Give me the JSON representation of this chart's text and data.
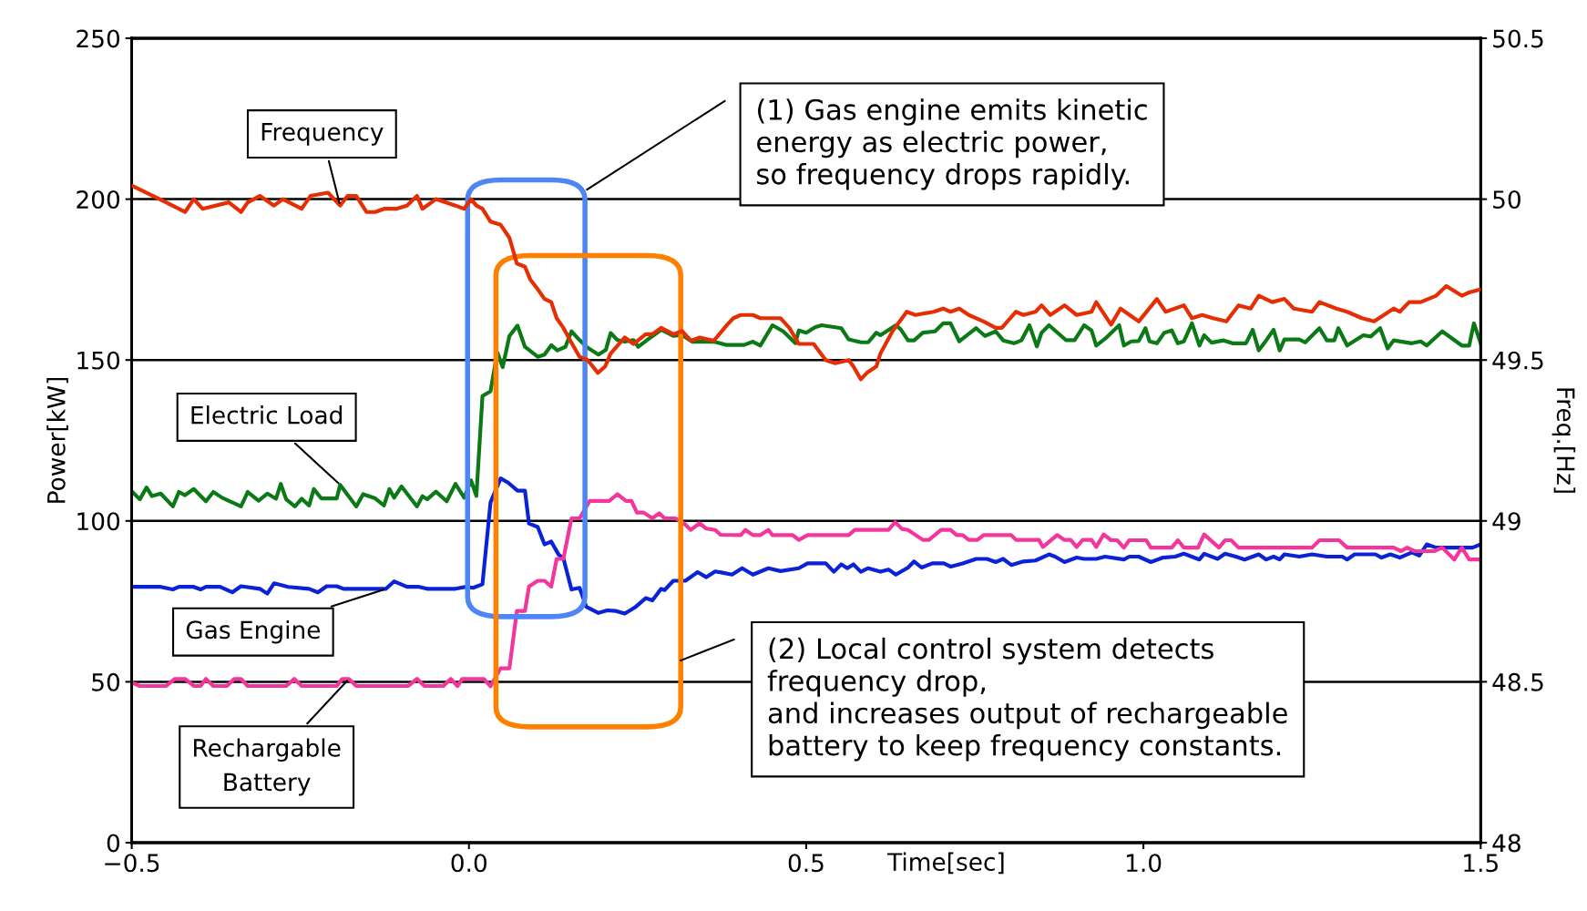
{
  "chart_data": {
    "type": "line",
    "xlabel": "Time[sec]",
    "ylabel": "Power[kW]",
    "y2label": "Freq.[Hz]",
    "xlim": [
      -0.5,
      1.5
    ],
    "xticks": [
      {
        "value": -0.5,
        "label": "−0.5"
      },
      {
        "value": 0,
        "label": "0.0"
      },
      {
        "value": 0.5,
        "label": "0.5"
      },
      {
        "value": 1,
        "label": "1.0"
      },
      {
        "value": 1.5,
        "label": "1.5"
      }
    ],
    "ylim": [
      0,
      250
    ],
    "yticks": [
      0,
      50,
      100,
      150,
      200,
      250
    ],
    "y2lim": [
      48,
      50.5
    ],
    "y2ticks": [
      48,
      48.5,
      49,
      49.5,
      50,
      50.5
    ],
    "grid": "y",
    "legend": false,
    "marker": "none",
    "line_style": "solid",
    "annotations": [
      "(1) Gas engine emits kinetic\nenergy as electric power,\nso frequency drops rapidly.",
      "(2) Local control system detects\nfrequency drop,\nand increases output of rechargeable\nbattery to keep frequency constants."
    ],
    "series": [
      {
        "name": "Frequency",
        "color": "#e62e04",
        "axis": "y2",
        "x": [
          -0.498,
          -0.449,
          -0.421,
          -0.408,
          -0.395,
          -0.356,
          -0.338,
          -0.328,
          -0.31,
          -0.289,
          -0.276,
          -0.248,
          -0.235,
          -0.209,
          -0.191,
          -0.18,
          -0.167,
          -0.152,
          -0.139,
          -0.126,
          -0.108,
          -0.092,
          -0.077,
          -0.069,
          -0.049,
          -0.02,
          -0.007,
          0.003,
          0.011,
          0.02,
          0.032,
          0.047,
          0.06,
          0.071,
          0.083,
          0.091,
          0.102,
          0.112,
          0.122,
          0.13,
          0.14,
          0.153,
          0.164,
          0.176,
          0.191,
          0.202,
          0.21,
          0.231,
          0.244,
          0.262,
          0.272,
          0.285,
          0.303,
          0.316,
          0.329,
          0.342,
          0.363,
          0.383,
          0.392,
          0.403,
          0.421,
          0.432,
          0.462,
          0.475,
          0.489,
          0.511,
          0.529,
          0.543,
          0.563,
          0.57,
          0.581,
          0.59,
          0.604,
          0.61,
          0.628,
          0.649,
          0.662,
          0.689,
          0.703,
          0.714,
          0.727,
          0.741,
          0.763,
          0.781,
          0.79,
          0.811,
          0.822,
          0.84,
          0.849,
          0.862,
          0.883,
          0.901,
          0.923,
          0.93,
          0.952,
          0.966,
          0.993,
          1.02,
          1.033,
          1.06,
          1.072,
          1.087,
          1.103,
          1.123,
          1.141,
          1.159,
          1.171,
          1.191,
          1.209,
          1.223,
          1.25,
          1.261,
          1.286,
          1.302,
          1.324,
          1.342,
          1.371,
          1.38,
          1.394,
          1.411,
          1.434,
          1.449,
          1.472,
          1.483,
          1.5
        ],
        "values": [
          50.04,
          49.99,
          49.96,
          50.0,
          49.97,
          49.99,
          49.96,
          49.99,
          50.01,
          49.98,
          50.0,
          49.97,
          50.01,
          50.02,
          49.98,
          50.01,
          50.01,
          49.96,
          49.96,
          49.97,
          49.97,
          49.98,
          50.01,
          49.97,
          50.0,
          49.98,
          49.97,
          50.0,
          49.98,
          49.97,
          49.93,
          49.92,
          49.88,
          49.8,
          49.79,
          49.75,
          49.72,
          49.69,
          49.68,
          49.63,
          49.6,
          49.55,
          49.51,
          49.5,
          49.46,
          49.48,
          49.52,
          49.57,
          49.55,
          49.58,
          49.58,
          49.6,
          49.58,
          49.59,
          49.56,
          49.57,
          49.56,
          49.61,
          49.63,
          49.64,
          49.64,
          49.63,
          49.63,
          49.6,
          49.55,
          49.55,
          49.5,
          49.49,
          49.5,
          49.48,
          49.44,
          49.46,
          49.48,
          49.52,
          49.59,
          49.65,
          49.64,
          49.65,
          49.66,
          49.65,
          49.66,
          49.64,
          49.62,
          49.6,
          49.6,
          49.65,
          49.64,
          49.65,
          49.67,
          49.64,
          49.67,
          49.64,
          49.65,
          49.68,
          49.61,
          49.66,
          49.62,
          49.69,
          49.65,
          49.67,
          49.63,
          49.64,
          49.63,
          49.62,
          49.67,
          49.66,
          49.7,
          49.68,
          49.69,
          49.66,
          49.65,
          49.68,
          49.66,
          49.65,
          49.63,
          49.62,
          49.66,
          49.65,
          49.68,
          49.68,
          49.7,
          49.73,
          49.7,
          49.71,
          49.72
        ]
      },
      {
        "name": "Electric Load",
        "color": "#0b7a16",
        "x": [
          -0.498,
          -0.488,
          -0.478,
          -0.47,
          -0.457,
          -0.439,
          -0.43,
          -0.421,
          -0.408,
          -0.39,
          -0.379,
          -0.366,
          -0.338,
          -0.328,
          -0.312,
          -0.299,
          -0.286,
          -0.279,
          -0.271,
          -0.258,
          -0.248,
          -0.237,
          -0.23,
          -0.219,
          -0.196,
          -0.191,
          -0.167,
          -0.157,
          -0.139,
          -0.126,
          -0.118,
          -0.111,
          -0.1,
          -0.077,
          -0.069,
          -0.062,
          -0.049,
          -0.033,
          -0.02,
          -0.007,
          0.003,
          0.011,
          0.02,
          0.032,
          0.042,
          0.05,
          0.06,
          0.072,
          0.083,
          0.102,
          0.112,
          0.122,
          0.131,
          0.143,
          0.152,
          0.164,
          0.176,
          0.192,
          0.203,
          0.21,
          0.22,
          0.231,
          0.244,
          0.251,
          0.264,
          0.285,
          0.303,
          0.316,
          0.331,
          0.363,
          0.381,
          0.408,
          0.421,
          0.432,
          0.45,
          0.466,
          0.484,
          0.489,
          0.5,
          0.513,
          0.523,
          0.552,
          0.563,
          0.581,
          0.592,
          0.604,
          0.61,
          0.633,
          0.64,
          0.651,
          0.66,
          0.673,
          0.691,
          0.703,
          0.714,
          0.727,
          0.752,
          0.765,
          0.781,
          0.792,
          0.808,
          0.819,
          0.831,
          0.842,
          0.849,
          0.86,
          0.885,
          0.898,
          0.912,
          0.923,
          0.93,
          0.943,
          0.964,
          0.971,
          0.982,
          0.993,
          1.003,
          1.009,
          1.02,
          1.031,
          1.042,
          1.051,
          1.06,
          1.072,
          1.083,
          1.09,
          1.101,
          1.119,
          1.132,
          1.152,
          1.162,
          1.171,
          1.182,
          1.193,
          1.202,
          1.209,
          1.231,
          1.24,
          1.261,
          1.272,
          1.283,
          1.289,
          1.302,
          1.326,
          1.337,
          1.351,
          1.362,
          1.371,
          1.398,
          1.411,
          1.42,
          1.443,
          1.472,
          1.483,
          1.49,
          1.5
        ],
        "values": [
          108.8,
          106.7,
          110.4,
          107.7,
          108.5,
          104.5,
          109.0,
          108.0,
          109.9,
          106.1,
          109.0,
          107.2,
          104.5,
          109.0,
          106.3,
          108.5,
          106.9,
          111.5,
          106.7,
          104.5,
          106.9,
          104.8,
          109.9,
          107.0,
          107.0,
          111.2,
          104.5,
          108.3,
          107.0,
          104.8,
          109.9,
          107.2,
          110.7,
          104.5,
          107.7,
          106.7,
          109.1,
          106.1,
          111.5,
          107.2,
          112.6,
          107.8,
          138.8,
          140.3,
          152.4,
          147.8,
          157.5,
          160.7,
          154.1,
          151.0,
          151.7,
          154.6,
          153.0,
          154.1,
          158.9,
          156.2,
          153.8,
          151.7,
          153.2,
          158.4,
          156.2,
          155.7,
          156.2,
          154.1,
          156.2,
          159.4,
          157.5,
          157.8,
          155.7,
          155.7,
          154.7,
          154.7,
          155.7,
          154.5,
          160.8,
          158.9,
          155.2,
          159.2,
          158.5,
          160.2,
          160.8,
          159.9,
          156.4,
          155.5,
          155.5,
          158.5,
          157.7,
          160.8,
          159.6,
          156.1,
          156.1,
          158.5,
          158.9,
          161.4,
          161.4,
          155.8,
          159.9,
          157.5,
          158.9,
          156.1,
          155.2,
          156.1,
          160.8,
          154.2,
          158.5,
          160.8,
          156.2,
          156.2,
          160.8,
          159.2,
          154.5,
          156.6,
          160.8,
          154.5,
          155.8,
          155.9,
          159.9,
          155.8,
          155.2,
          158.5,
          159.2,
          155.2,
          155.8,
          161.4,
          154.5,
          157.7,
          155.4,
          156.1,
          155.2,
          155.2,
          159.4,
          153.0,
          156.1,
          159.4,
          153.0,
          156.4,
          156.4,
          155.5,
          159.9,
          156.1,
          156.1,
          159.9,
          154.5,
          157.7,
          157.3,
          159.9,
          153.6,
          156.1,
          155.2,
          155.8,
          154.5,
          158.9,
          154.5,
          154.5,
          161.4,
          155.2
        ]
      },
      {
        "name": "Gas Engine",
        "color": "#0a23d6",
        "x": [
          -0.498,
          -0.457,
          -0.439,
          -0.43,
          -0.408,
          -0.398,
          -0.39,
          -0.369,
          -0.351,
          -0.338,
          -0.31,
          -0.299,
          -0.289,
          -0.268,
          -0.237,
          -0.224,
          -0.211,
          -0.196,
          -0.186,
          -0.123,
          -0.111,
          -0.092,
          -0.074,
          -0.062,
          -0.02,
          -0.005,
          0.006,
          0.02,
          0.032,
          0.047,
          0.058,
          0.072,
          0.083,
          0.089,
          0.102,
          0.112,
          0.122,
          0.133,
          0.14,
          0.152,
          0.164,
          0.174,
          0.192,
          0.205,
          0.218,
          0.231,
          0.246,
          0.262,
          0.272,
          0.285,
          0.29,
          0.303,
          0.321,
          0.339,
          0.352,
          0.365,
          0.376,
          0.39,
          0.405,
          0.421,
          0.444,
          0.462,
          0.489,
          0.502,
          0.529,
          0.541,
          0.552,
          0.561,
          0.57,
          0.581,
          0.592,
          0.61,
          0.622,
          0.633,
          0.651,
          0.66,
          0.671,
          0.687,
          0.704,
          0.714,
          0.732,
          0.752,
          0.768,
          0.781,
          0.792,
          0.804,
          0.822,
          0.84,
          0.86,
          0.869,
          0.883,
          0.901,
          0.912,
          0.93,
          0.943,
          0.971,
          0.979,
          0.993,
          1.011,
          1.029,
          1.047,
          1.06,
          1.083,
          1.09,
          1.11,
          1.121,
          1.137,
          1.15,
          1.171,
          1.182,
          1.193,
          1.202,
          1.209,
          1.231,
          1.25,
          1.272,
          1.295,
          1.302,
          1.313,
          1.344,
          1.353,
          1.366,
          1.38,
          1.398,
          1.409,
          1.42,
          1.434,
          1.488,
          1.5
        ],
        "values": [
          79.5,
          79.5,
          78.7,
          79.5,
          79.5,
          78.7,
          79.5,
          79.5,
          77.8,
          79.7,
          78.9,
          77.4,
          80.6,
          79.5,
          78.9,
          77.8,
          79.7,
          79.7,
          78.9,
          78.9,
          81.2,
          79.5,
          79.5,
          78.9,
          78.9,
          79.5,
          79.2,
          80.3,
          105.8,
          113.2,
          111.9,
          109.4,
          109.4,
          99.2,
          98.1,
          92.7,
          93.6,
          89.5,
          88.4,
          78.7,
          79.2,
          73.3,
          71.4,
          72.2,
          72.0,
          71.2,
          73.1,
          76.0,
          75.3,
          78.9,
          78.5,
          81.4,
          81.4,
          84.1,
          82.5,
          84.3,
          83.9,
          83.3,
          85.3,
          83.3,
          85.3,
          84.4,
          85.3,
          86.8,
          86.8,
          84.2,
          86.5,
          85.3,
          86.5,
          84.2,
          85.3,
          84.2,
          84.9,
          83.3,
          85.5,
          87.4,
          85.5,
          86.8,
          86.8,
          85.8,
          86.8,
          88.2,
          88.2,
          87.2,
          88.2,
          86.3,
          87.4,
          87.7,
          89.6,
          88.9,
          87.2,
          88.6,
          88.2,
          88.2,
          88.9,
          88.0,
          88.9,
          88.9,
          87.2,
          88.6,
          88.9,
          89.8,
          88.0,
          89.8,
          88.2,
          89.8,
          88.9,
          88.0,
          89.6,
          88.0,
          88.9,
          88.0,
          89.6,
          88.9,
          89.6,
          88.9,
          88.9,
          88.0,
          89.6,
          89.6,
          88.6,
          89.6,
          88.6,
          90.2,
          89.2,
          92.7,
          91.7,
          91.7,
          92.7
        ]
      },
      {
        "name": "Rechargable\nBattery",
        "color": "#f2369b",
        "x": [
          -0.498,
          -0.488,
          -0.449,
          -0.436,
          -0.421,
          -0.408,
          -0.398,
          -0.39,
          -0.379,
          -0.359,
          -0.348,
          -0.338,
          -0.328,
          -0.271,
          -0.259,
          -0.248,
          -0.196,
          -0.188,
          -0.178,
          -0.167,
          -0.09,
          -0.077,
          -0.066,
          -0.038,
          -0.027,
          -0.017,
          -0.01,
          0.022,
          0.032,
          0.047,
          0.06,
          0.071,
          0.083,
          0.089,
          0.102,
          0.112,
          0.122,
          0.13,
          0.14,
          0.152,
          0.164,
          0.179,
          0.208,
          0.22,
          0.233,
          0.241,
          0.249,
          0.259,
          0.272,
          0.282,
          0.29,
          0.306,
          0.319,
          0.329,
          0.342,
          0.352,
          0.365,
          0.373,
          0.403,
          0.41,
          0.421,
          0.432,
          0.444,
          0.45,
          0.48,
          0.489,
          0.502,
          0.563,
          0.572,
          0.622,
          0.632,
          0.642,
          0.651,
          0.673,
          0.682,
          0.7,
          0.714,
          0.723,
          0.732,
          0.741,
          0.754,
          0.763,
          0.804,
          0.811,
          0.845,
          0.851,
          0.872,
          0.883,
          0.892,
          0.901,
          0.91,
          0.923,
          0.93,
          0.941,
          0.952,
          0.961,
          0.971,
          0.979,
          1.004,
          1.011,
          1.042,
          1.051,
          1.06,
          1.081,
          1.09,
          1.112,
          1.121,
          1.13,
          1.141,
          1.25,
          1.261,
          1.29,
          1.302,
          1.371,
          1.382,
          1.391,
          1.402,
          1.431,
          1.443,
          1.461,
          1.472,
          1.483,
          1.5
        ],
        "values": [
          49.6,
          48.7,
          48.7,
          50.9,
          50.9,
          48.7,
          48.7,
          50.9,
          48.7,
          48.7,
          50.9,
          50.9,
          48.7,
          48.7,
          50.9,
          48.7,
          48.7,
          50.9,
          50.9,
          48.7,
          48.7,
          50.9,
          48.7,
          48.7,
          50.9,
          48.7,
          50.9,
          50.9,
          48.6,
          54.2,
          54.2,
          72.0,
          72.0,
          79.6,
          81.4,
          81.4,
          79.6,
          88.2,
          88.2,
          100.8,
          100.8,
          106.2,
          106.2,
          108.3,
          106.2,
          106.2,
          102.6,
          102.6,
          100.8,
          102.4,
          100.8,
          100.8,
          99.2,
          97.2,
          99.3,
          97.6,
          97.2,
          95.7,
          95.6,
          97.2,
          95.6,
          95.6,
          97.2,
          95.6,
          95.6,
          94.1,
          95.6,
          95.6,
          97.2,
          97.2,
          99.6,
          97.5,
          97.2,
          94.1,
          94.1,
          97.2,
          97.2,
          95.6,
          95.6,
          94.1,
          94.1,
          95.6,
          95.6,
          94.1,
          94.1,
          91.9,
          95.6,
          94.1,
          94.1,
          91.9,
          94.1,
          94.1,
          91.9,
          95.8,
          94.0,
          94.0,
          91.7,
          94.0,
          94.0,
          91.7,
          91.7,
          94.0,
          91.7,
          91.7,
          95.8,
          91.7,
          94.0,
          94.0,
          91.7,
          91.7,
          94.0,
          94.0,
          91.7,
          91.7,
          90.6,
          91.7,
          90.6,
          90.6,
          91.7,
          88.0,
          91.7,
          88.0,
          88.0
        ]
      }
    ]
  }
}
